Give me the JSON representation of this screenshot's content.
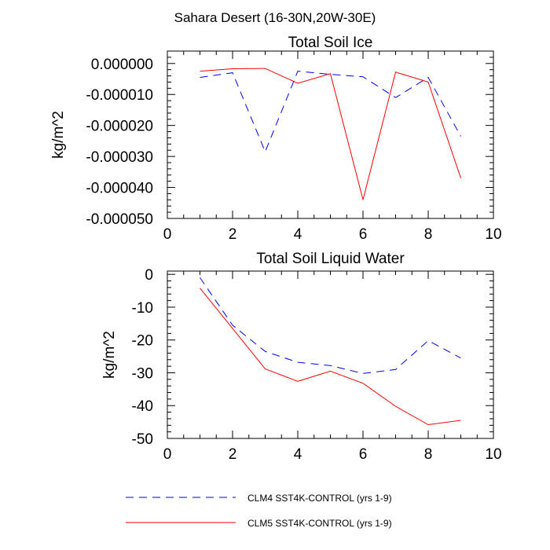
{
  "figure": {
    "title": "Sahara Desert (16-30N,20W-30E)"
  },
  "colors": {
    "clm4": "#0000ff",
    "clm5": "#ff0000",
    "axis": "#000000"
  },
  "legend": {
    "placement": "bottom",
    "entries": [
      {
        "label": "CLM4 SST4K-CONTROL (yrs 1-9)",
        "style": "dashed",
        "color": "#0000ff"
      },
      {
        "label": "CLM5 SST4K-CONTROL (yrs 1-9)",
        "style": "solid",
        "color": "#ff0000"
      }
    ]
  },
  "chart_data": [
    {
      "type": "line",
      "title": "Total Soil Ice",
      "xlabel": "",
      "ylabel": "kg/m^2",
      "xlim": [
        0,
        10
      ],
      "ylim": [
        -5e-05,
        4e-06
      ],
      "xticks": [
        0,
        2,
        4,
        6,
        8,
        10
      ],
      "yticks": [
        0,
        -1e-05,
        -2e-05,
        -3e-05,
        -4e-05,
        -5e-05
      ],
      "xtick_labels": [
        "0",
        "2",
        "4",
        "6",
        "8",
        "10"
      ],
      "ytick_labels": [
        "0.000000",
        "-0.000010",
        "-0.000020",
        "-0.000030",
        "-0.000040",
        "-0.000050"
      ],
      "x": [
        1,
        2,
        3,
        4,
        5,
        6,
        7,
        8,
        9
      ],
      "series": [
        {
          "name": "CLM4 SST4K-CONTROL (yrs 1-9)",
          "style": "dashed",
          "color": "#0000ff",
          "values": [
            -4.5e-06,
            -3e-06,
            -2.85e-05,
            -2.5e-06,
            -3.5e-06,
            -4.3e-06,
            -1.1e-05,
            -4.5e-06,
            -2.35e-05
          ]
        },
        {
          "name": "CLM5 SST4K-CONTROL (yrs 1-9)",
          "style": "solid",
          "color": "#ff0000",
          "values": [
            -2.5e-06,
            -1.7e-06,
            -1.6e-06,
            -6.4e-06,
            -3.3e-06,
            -4.4e-05,
            -2.8e-06,
            -6e-06,
            -3.7e-05
          ]
        }
      ]
    },
    {
      "type": "line",
      "title": "Total Soil Liquid Water",
      "xlabel": "",
      "ylabel": "kg/m^2",
      "xlim": [
        0,
        10
      ],
      "ylim": [
        -50,
        1
      ],
      "xticks": [
        0,
        2,
        4,
        6,
        8,
        10
      ],
      "yticks": [
        0,
        -10,
        -20,
        -30,
        -40,
        -50
      ],
      "xtick_labels": [
        "0",
        "2",
        "4",
        "6",
        "8",
        "10"
      ],
      "ytick_labels": [
        "0",
        "-10",
        "-20",
        "-30",
        "-40",
        "-50"
      ],
      "x": [
        1,
        2,
        3,
        4,
        5,
        6,
        7,
        8,
        9
      ],
      "series": [
        {
          "name": "CLM4 SST4K-CONTROL (yrs 1-9)",
          "style": "dashed",
          "color": "#0000ff",
          "values": [
            -1,
            -15.5,
            -23.5,
            -26.8,
            -27.8,
            -30.2,
            -29,
            -20.2,
            -25.5
          ]
        },
        {
          "name": "CLM5 SST4K-CONTROL (yrs 1-9)",
          "style": "solid",
          "color": "#ff0000",
          "values": [
            -4.2,
            -16.5,
            -28.8,
            -32.6,
            -29.5,
            -33.2,
            -40.2,
            -45.8,
            -44.5
          ]
        }
      ]
    }
  ]
}
